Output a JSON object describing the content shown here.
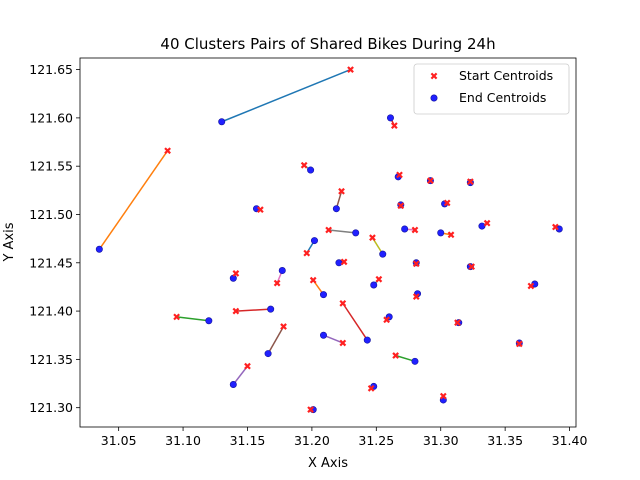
{
  "chart_data": {
    "type": "scatter",
    "title": "40 Clusters Pairs of Shared Bikes During 24h",
    "xlabel": "X Axis",
    "ylabel": "Y Axis",
    "xlim": [
      31.02,
      31.405
    ],
    "ylim": [
      121.28,
      121.662
    ],
    "xticks": [
      "31.05",
      "31.10",
      "31.15",
      "31.20",
      "31.25",
      "31.30",
      "31.35",
      "31.40"
    ],
    "yticks": [
      "121.30",
      "121.35",
      "121.40",
      "121.45",
      "121.50",
      "121.55",
      "121.60",
      "121.65"
    ],
    "grid": false,
    "legend_position": "top-right",
    "legend": [
      {
        "label": "Start Centroids",
        "marker": "x",
        "color": "#ff2020"
      },
      {
        "label": "End Centroids",
        "marker": "o",
        "color": "#2020ff"
      }
    ],
    "series_colors": [
      "#1f77b4",
      "#ff7f0e",
      "#2ca02c",
      "#d62728",
      "#9467bd",
      "#8c564b",
      "#e377c2",
      "#7f7f7f",
      "#bcbd22",
      "#17becf"
    ],
    "pairs": [
      {
        "start": [
          31.23,
          121.65
        ],
        "end": [
          31.13,
          121.596
        ]
      },
      {
        "start": [
          31.088,
          121.566
        ],
        "end": [
          31.035,
          121.464
        ]
      },
      {
        "start": [
          31.095,
          121.394
        ],
        "end": [
          31.12,
          121.39
        ]
      },
      {
        "start": [
          31.141,
          121.4
        ],
        "end": [
          31.168,
          121.402
        ]
      },
      {
        "start": [
          31.15,
          121.343
        ],
        "end": [
          31.139,
          121.324
        ]
      },
      {
        "start": [
          31.178,
          121.384
        ],
        "end": [
          31.166,
          121.356
        ]
      },
      {
        "start": [
          31.173,
          121.429
        ],
        "end": [
          31.177,
          121.442
        ]
      },
      {
        "start": [
          31.141,
          121.439
        ],
        "end": [
          31.139,
          121.434
        ]
      },
      {
        "start": [
          31.16,
          121.505
        ],
        "end": [
          31.157,
          121.506
        ]
      },
      {
        "start": [
          31.194,
          121.551
        ],
        "end": [
          31.199,
          121.546
        ]
      },
      {
        "start": [
          31.196,
          121.46
        ],
        "end": [
          31.202,
          121.473
        ]
      },
      {
        "start": [
          31.201,
          121.432
        ],
        "end": [
          31.209,
          121.417
        ]
      },
      {
        "start": [
          31.199,
          121.298
        ],
        "end": [
          31.201,
          121.298
        ]
      },
      {
        "start": [
          31.224,
          121.408
        ],
        "end": [
          31.243,
          121.37
        ]
      },
      {
        "start": [
          31.224,
          121.367
        ],
        "end": [
          31.209,
          121.375
        ]
      },
      {
        "start": [
          31.223,
          121.524
        ],
        "end": [
          31.219,
          121.506
        ]
      },
      {
        "start": [
          31.225,
          121.451
        ],
        "end": [
          31.221,
          121.45
        ]
      },
      {
        "start": [
          31.213,
          121.484
        ],
        "end": [
          31.234,
          121.481
        ]
      },
      {
        "start": [
          31.247,
          121.476
        ],
        "end": [
          31.255,
          121.459
        ]
      },
      {
        "start": [
          31.252,
          121.433
        ],
        "end": [
          31.248,
          121.427
        ]
      },
      {
        "start": [
          31.258,
          121.391
        ],
        "end": [
          31.26,
          121.394
        ]
      },
      {
        "start": [
          31.246,
          121.32
        ],
        "end": [
          31.248,
          121.322
        ]
      },
      {
        "start": [
          31.265,
          121.354
        ],
        "end": [
          31.28,
          121.348
        ]
      },
      {
        "start": [
          31.264,
          121.592
        ],
        "end": [
          31.261,
          121.6
        ]
      },
      {
        "start": [
          31.268,
          121.541
        ],
        "end": [
          31.267,
          121.539
        ]
      },
      {
        "start": [
          31.269,
          121.509
        ],
        "end": [
          31.269,
          121.51
        ]
      },
      {
        "start": [
          31.28,
          121.484
        ],
        "end": [
          31.272,
          121.485
        ]
      },
      {
        "start": [
          31.281,
          121.449
        ],
        "end": [
          31.281,
          121.45
        ]
      },
      {
        "start": [
          31.281,
          121.415
        ],
        "end": [
          31.282,
          121.418
        ]
      },
      {
        "start": [
          31.292,
          121.535
        ],
        "end": [
          31.292,
          121.535
        ]
      },
      {
        "start": [
          31.305,
          121.512
        ],
        "end": [
          31.303,
          121.511
        ]
      },
      {
        "start": [
          31.308,
          121.479
        ],
        "end": [
          31.3,
          121.481
        ]
      },
      {
        "start": [
          31.323,
          121.534
        ],
        "end": [
          31.323,
          121.533
        ]
      },
      {
        "start": [
          31.336,
          121.491
        ],
        "end": [
          31.332,
          121.488
        ]
      },
      {
        "start": [
          31.324,
          121.446
        ],
        "end": [
          31.323,
          121.446
        ]
      },
      {
        "start": [
          31.313,
          121.388
        ],
        "end": [
          31.314,
          121.388
        ]
      },
      {
        "start": [
          31.302,
          121.312
        ],
        "end": [
          31.302,
          121.308
        ]
      },
      {
        "start": [
          31.361,
          121.366
        ],
        "end": [
          31.361,
          121.367
        ]
      },
      {
        "start": [
          31.37,
          121.426
        ],
        "end": [
          31.373,
          121.428
        ]
      },
      {
        "start": [
          31.389,
          121.487
        ],
        "end": [
          31.392,
          121.485
        ]
      }
    ]
  }
}
